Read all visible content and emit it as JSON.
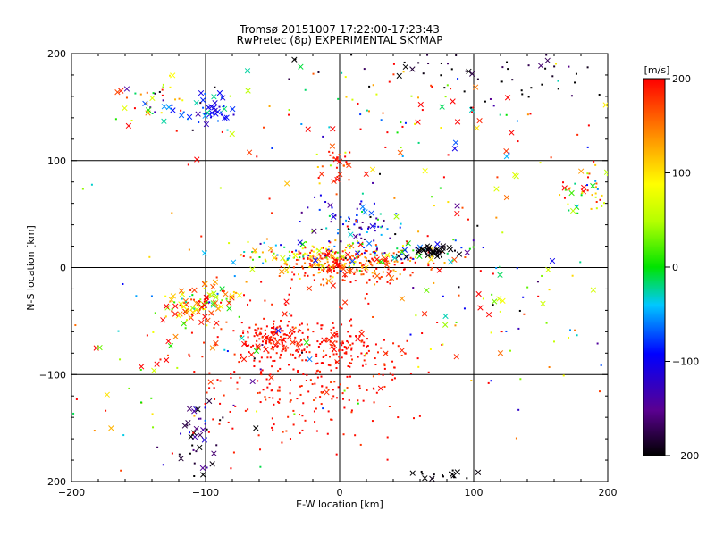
{
  "title_line1": "Tromsø 20151007 17:22:00-17:23:43",
  "title_line2": "RwPretec (8p) EXPERIMENTAL SKYMAP",
  "chart_data": {
    "type": "scatter",
    "title": "Tromsø 20151007 17:22:00-17:23:43",
    "subtitle": "RwPretec (8p) EXPERIMENTAL SKYMAP",
    "xlabel": "E-W location [km]",
    "ylabel": "N-S location [km]",
    "xlim": [
      -200,
      200
    ],
    "ylim": [
      -200,
      200
    ],
    "x_ticks": [
      -200,
      -100,
      0,
      100,
      200
    ],
    "y_ticks": [
      -200,
      -100,
      0,
      100,
      200
    ],
    "x_tick_labels": [
      "−200",
      "−100",
      "0",
      "100",
      "200"
    ],
    "y_tick_labels": [
      "−200",
      "−100",
      "0",
      "100",
      "200"
    ],
    "grid": true,
    "marker_types": [
      "dot",
      "x"
    ],
    "colorbar": {
      "label": "[m/s]",
      "range": [
        -200,
        200
      ],
      "ticks": [
        200,
        100,
        0,
        -100,
        -200
      ],
      "tick_labels": [
        "200",
        "100",
        "0",
        "−100",
        "−200"
      ],
      "colormap": "black-purple-blue-cyan-green-yellow-orange-red"
    },
    "clusters": [
      {
        "x": 5,
        "y": 3,
        "sx": 28,
        "sy": 8,
        "n": 260,
        "v": 170,
        "vs": 40,
        "xfrac": 0.12
      },
      {
        "x": -30,
        "y": 12,
        "sx": 25,
        "sy": 6,
        "n": 90,
        "v": 60,
        "vs": 90,
        "xfrac": 0.15
      },
      {
        "x": 50,
        "y": 15,
        "sx": 25,
        "sy": 6,
        "n": 70,
        "v": 20,
        "vs": 110,
        "xfrac": 0.2
      },
      {
        "x": 70,
        "y": 15,
        "sx": 8,
        "sy": 3,
        "n": 35,
        "v": -200,
        "vs": 5,
        "xfrac": 0.8
      },
      {
        "x": -50,
        "y": -65,
        "sx": 12,
        "sy": 8,
        "n": 120,
        "v": 195,
        "vs": 10,
        "xfrac": 0.15
      },
      {
        "x": 0,
        "y": -75,
        "sx": 15,
        "sy": 10,
        "n": 80,
        "v": 195,
        "vs": 10,
        "xfrac": 0.12
      },
      {
        "x": -20,
        "y": -95,
        "sx": 40,
        "sy": 35,
        "n": 320,
        "v": 195,
        "vs": 12,
        "xfrac": 0.04
      },
      {
        "x": -110,
        "y": -37,
        "sx": 12,
        "sy": 7,
        "n": 70,
        "v": 120,
        "vs": 90,
        "xfrac": 0.45
      },
      {
        "x": -90,
        "y": -28,
        "sx": 8,
        "sy": 5,
        "n": 35,
        "v": 100,
        "vs": 90,
        "xfrac": 0.4
      },
      {
        "x": -95,
        "y": 148,
        "sx": 10,
        "sy": 8,
        "n": 45,
        "v": -100,
        "vs": 35,
        "xfrac": 0.5
      },
      {
        "x": -135,
        "y": 155,
        "sx": 12,
        "sy": 10,
        "n": 40,
        "v": 40,
        "vs": 110,
        "xfrac": 0.3
      },
      {
        "x": 185,
        "y": 70,
        "sx": 10,
        "sy": 10,
        "n": 45,
        "v": 120,
        "vs": 100,
        "xfrac": 0.4
      },
      {
        "x": 10,
        "y": 40,
        "sx": 15,
        "sy": 12,
        "n": 90,
        "v": -100,
        "vs": 60,
        "xfrac": 0.15
      },
      {
        "x": 0,
        "y": 95,
        "sx": 6,
        "sy": 10,
        "n": 25,
        "v": 190,
        "vs": 15,
        "xfrac": 0.3
      },
      {
        "x": -110,
        "y": -160,
        "sx": 10,
        "sy": 20,
        "n": 35,
        "v": -180,
        "vs": 40,
        "xfrac": 0.5
      },
      {
        "x": 75,
        "y": -195,
        "sx": 12,
        "sy": 4,
        "n": 20,
        "v": -200,
        "vs": 5,
        "xfrac": 0.6
      },
      {
        "x": 130,
        "y": -30,
        "sx": 50,
        "sy": 40,
        "n": 90,
        "v": 60,
        "vs": 130,
        "xfrac": 0.25
      },
      {
        "x": -130,
        "y": -100,
        "sx": 60,
        "sy": 60,
        "n": 110,
        "v": 80,
        "vs": 130,
        "xfrac": 0.3
      },
      {
        "x": 50,
        "y": 130,
        "sx": 90,
        "sy": 45,
        "n": 150,
        "v": 100,
        "vs": 130,
        "xfrac": 0.25
      },
      {
        "x": 100,
        "y": 180,
        "sx": 80,
        "sy": 15,
        "n": 60,
        "v": -190,
        "vs": 20,
        "xfrac": 0.2
      }
    ]
  }
}
